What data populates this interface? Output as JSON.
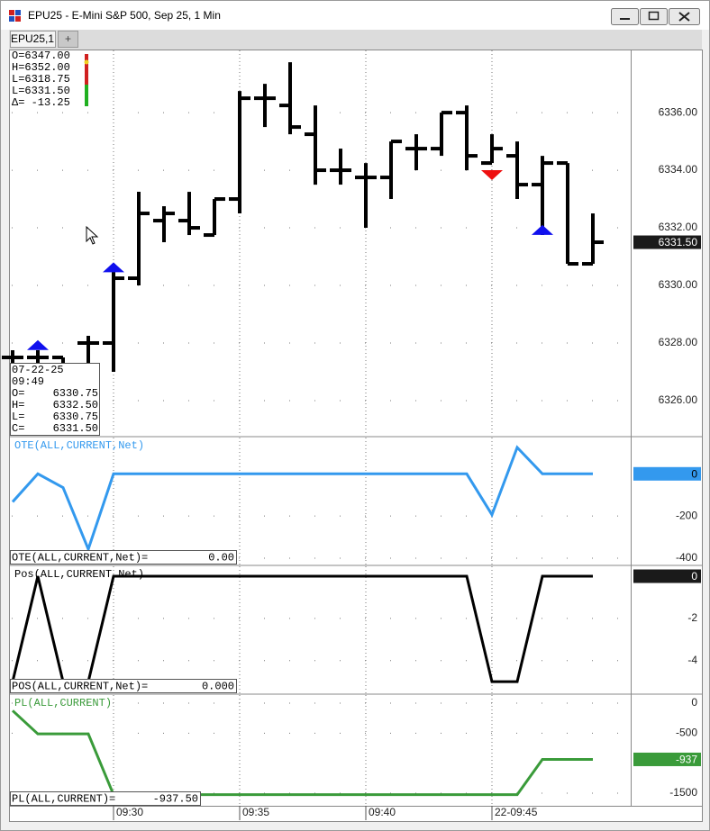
{
  "window": {
    "title": "EPU25 - E-Mini S&P 500, Sep 25, 1 Min",
    "tabs": [
      "EPU25,1",
      "+"
    ]
  },
  "chart_data": [
    {
      "type": "ohlc",
      "categories": [
        null,
        null,
        null,
        null,
        "09:30",
        null,
        null,
        null,
        null,
        "09:35",
        null,
        null,
        null,
        null,
        "09:40",
        null,
        null,
        null,
        null,
        "22-09:45",
        null,
        null,
        null,
        null
      ],
      "open": [
        6327.5,
        6327.5,
        6327.5,
        6328.0,
        6328.0,
        6330.25,
        6332.25,
        6332.25,
        6331.75,
        6333.0,
        6336.5,
        6336.25,
        6335.25,
        6334.0,
        6333.75,
        6333.75,
        6334.75,
        6334.75,
        6336.0,
        6334.25,
        6334.5,
        6333.5,
        6334.25,
        6330.75
      ],
      "high": [
        6327.75,
        6327.75,
        6327.5,
        6328.25,
        6330.75,
        6333.25,
        6332.75,
        6333.25,
        6333.0,
        6336.75,
        6337.0,
        6337.75,
        6336.25,
        6334.75,
        6334.25,
        6335.0,
        6335.25,
        6336.0,
        6336.25,
        6335.25,
        6335.0,
        6334.5,
        6334.25,
        6332.5
      ],
      "low": [
        6327.0,
        6327.25,
        6327.25,
        6327.25,
        6327.0,
        6330.0,
        6331.5,
        6331.75,
        6331.75,
        6332.5,
        6335.5,
        6335.25,
        6333.5,
        6333.5,
        6332.0,
        6333.0,
        6334.0,
        6334.5,
        6334.0,
        6334.25,
        6333.0,
        6331.75,
        6330.75,
        6330.75
      ],
      "close": [
        6327.5,
        6327.5,
        6327.25,
        6328.0,
        6330.25,
        6332.5,
        6332.5,
        6332.0,
        6333.0,
        6336.5,
        6336.5,
        6335.5,
        6334.0,
        6334.0,
        6333.75,
        6335.0,
        6334.75,
        6336.0,
        6334.5,
        6334.75,
        6333.5,
        6334.25,
        6330.75,
        6331.5
      ],
      "color": "#000000",
      "ylim": [
        6324.78,
        6338.16
      ],
      "yticks": [
        {
          "value": 6326,
          "label": "6326.00"
        },
        {
          "value": 6328,
          "label": "6328.00"
        },
        {
          "value": 6330,
          "label": "6330.00"
        },
        {
          "value": 6332,
          "label": "6332.00"
        },
        {
          "value": 6334,
          "label": "6334.00"
        },
        {
          "value": 6336,
          "label": "6336.00"
        }
      ],
      "grid": true,
      "last": {
        "value": 6331.5,
        "label": "6331.50"
      },
      "last_color": "#1a1a1a",
      "markers": [
        {
          "x": 1,
          "y": 6328.1,
          "shape": "up",
          "color": "#1010ee"
        },
        {
          "x": 4,
          "y": 6330.8,
          "shape": "up",
          "color": "#1010ee"
        },
        {
          "x": 19,
          "y": 6333.66,
          "shape": "down",
          "color": "#ee1010"
        },
        {
          "x": 21,
          "y": 6332.1,
          "shape": "up",
          "color": "#1010ee"
        }
      ],
      "info": [
        "O=6347.00",
        "H=6352.00",
        "L=6318.75",
        "L=6331.50",
        "Δ= -13.25"
      ],
      "data_box": {
        "date": "07-22-25",
        "time": "09:49",
        "rows": [
          [
            "O=",
            "6330.75"
          ],
          [
            "H=",
            "6332.50"
          ],
          [
            "L=",
            "6330.75"
          ],
          [
            "C=",
            "6331.50"
          ]
        ]
      }
    },
    {
      "type": "line",
      "title": "OTE(ALL,CURRENT,Net)",
      "color": "#3399ee",
      "values": [
        -133,
        0,
        -65,
        -357,
        0,
        0,
        0,
        0,
        0,
        0,
        0,
        0,
        0,
        0,
        0,
        0,
        0,
        0,
        0,
        -194,
        125,
        0,
        0,
        0
      ],
      "ylim": [
        -430,
        172
      ],
      "yticks": [
        -200,
        -400
      ],
      "grid": true,
      "last": 0,
      "last_color": "#3399ee",
      "footer": [
        "OTE(ALL,CURRENT,Net)=",
        "0.00"
      ]
    },
    {
      "type": "line",
      "title": "Pos(ALL,CURRENT,Net)",
      "color": "#000000",
      "values": [
        -5,
        0,
        -5,
        -5,
        0,
        0,
        0,
        0,
        0,
        0,
        0,
        0,
        0,
        0,
        0,
        0,
        0,
        0,
        0,
        -5,
        -5,
        0,
        0,
        0
      ],
      "ylim": [
        -5.55,
        0.47
      ],
      "yticks": [
        -2,
        -4
      ],
      "grid": true,
      "last": 0,
      "last_color": "#1a1a1a",
      "footer": [
        "POS(ALL,CURRENT,Net)=",
        "0.000"
      ]
    },
    {
      "type": "line",
      "title": "PL(ALL,CURRENT)",
      "color": "#3a9b3a",
      "values": [
        -125,
        -512.5,
        -512.5,
        -512.5,
        -1525,
        -1525,
        -1525,
        -1525,
        -1525,
        -1525,
        -1525,
        -1525,
        -1525,
        -1525,
        -1525,
        -1525,
        -1525,
        -1525,
        -1525,
        -1525,
        -1525,
        -937.5,
        -937.5,
        -937.5
      ],
      "ylim": [
        -1710,
        135
      ],
      "yticks": [
        0,
        -500,
        -1500
      ],
      "grid": true,
      "last": -937,
      "last_color": "#3a9b3a",
      "footer": [
        "PL(ALL,CURRENT)=",
        "-937.50"
      ]
    }
  ]
}
